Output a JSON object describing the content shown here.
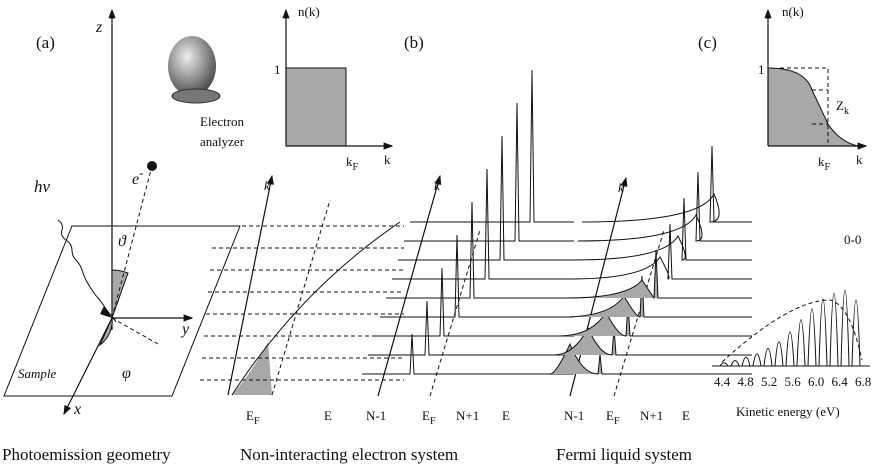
{
  "panel_a": {
    "label": "(a)",
    "z_label": "z",
    "y_label": "y",
    "x_label": "x",
    "sample_label": "Sample",
    "electron_label": {
      "text": "e",
      "sup": "-"
    },
    "photon_label": "hν",
    "theta_label": "ϑ",
    "phi_label": "φ",
    "analyzer_label": [
      "Electron",
      "analyzer"
    ],
    "caption": "Photoemission geometry"
  },
  "nk_noninteracting": {
    "y_label": "n(k)",
    "one": "1",
    "kf": {
      "text": "k",
      "sub": "F"
    },
    "x_label": "k"
  },
  "noninteracting": {
    "k_label": "k",
    "ef": {
      "text": "E",
      "sub": "F"
    },
    "e_label": "E",
    "caption": "Non-interacting electron system"
  },
  "panel_b": {
    "label": "(b)",
    "k_label": "k",
    "n_minus": "N-1",
    "ef": {
      "text": "E",
      "sub": "F"
    },
    "n_plus": "N+1",
    "e_label": "E"
  },
  "fermi_liquid": {
    "k_label": "k",
    "n_minus": "N-1",
    "ef": {
      "text": "E",
      "sub": "F"
    },
    "n_plus": "N+1",
    "e_label": "E",
    "caption": "Fermi liquid system"
  },
  "panel_c": {
    "label": "(c)",
    "y_label": "n(k)",
    "one": "1",
    "zk": {
      "text": "Z",
      "sub": "k"
    },
    "kf": {
      "text": "k",
      "sub": "F"
    },
    "x_label": "k",
    "peak_label": "0-0",
    "energy_ticks": [
      "4.4",
      "4.8",
      "5.2",
      "5.6",
      "6.0",
      "6.4",
      "6.8"
    ],
    "energy_label": "Kinetic energy (eV)"
  }
}
